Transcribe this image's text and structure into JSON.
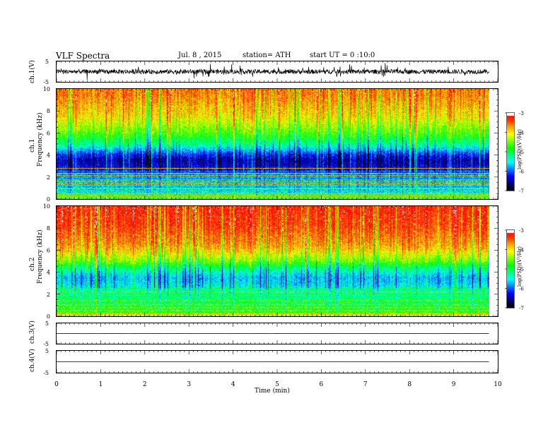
{
  "header": {
    "title": "VLF  Spectra",
    "date": "Jul.  8  , 2015",
    "station": "station= ATH",
    "start": "start  UT  =   0  :10:0"
  },
  "colors": {
    "colormap": [
      "#000000",
      "#00007f",
      "#0000ff",
      "#007fff",
      "#00ffff",
      "#00ff7f",
      "#00ff00",
      "#7fff00",
      "#ffff00",
      "#ffa500",
      "#ff3300",
      "#ff0000",
      "#ffffff"
    ],
    "trace": "#000000",
    "axis": "#000000"
  },
  "chart_data": [
    {
      "type": "line",
      "panel": "ch1-waveform",
      "ylabel": "ch.1(V)",
      "ylim": [
        -5,
        5
      ],
      "yticks": [
        "5",
        "-5"
      ],
      "x": [
        0,
        9.8
      ],
      "noise_amplitude_v": 1.1,
      "spike_amplitude_v": 3.5
    },
    {
      "type": "heatmap",
      "panel": "ch1-spectrogram",
      "ylabel_channel": "ch.1",
      "ylabel": "Frequency  (kHz)",
      "ylim": [
        0,
        10
      ],
      "yticks": [
        "0",
        "2",
        "4",
        "6",
        "8",
        "10"
      ],
      "colorbar": {
        "label": "log(PSD)(V²/Hz)",
        "range": [
          -7,
          -3
        ],
        "ticks": [
          "-3",
          "-4",
          "-5",
          "-6",
          "-7"
        ]
      },
      "freq_khz": [
        0,
        0.5,
        1,
        1.5,
        2,
        2.5,
        3,
        3.5,
        4,
        4.5,
        5,
        5.5,
        6,
        6.5,
        7,
        7.5,
        8,
        8.5,
        9,
        9.5,
        10
      ],
      "log_psd_profile": [
        -4.6,
        -5.6,
        -5.7,
        -5.8,
        -5.9,
        -6.2,
        -6.4,
        -6.5,
        -6.2,
        -5.7,
        -5.2,
        -4.9,
        -4.6,
        -4.4,
        -4.2,
        -4.0,
        -3.9,
        -3.8,
        -3.7,
        -3.6,
        -3.6
      ],
      "strong_lines_khz": [
        0.1,
        0.3,
        0.5,
        0.9,
        1.35,
        1.6,
        2.1,
        2.3,
        2.8
      ],
      "time_min_range": [
        0,
        9.8
      ]
    },
    {
      "type": "heatmap",
      "panel": "ch2-spectrogram",
      "ylabel_channel": "ch.2",
      "ylabel": "Frequency  (kHz)",
      "ylim": [
        0,
        10
      ],
      "yticks": [
        "0",
        "2",
        "4",
        "6",
        "8",
        "10"
      ],
      "colorbar": {
        "label": "log(PSD)(V²/Hz)",
        "range": [
          -7,
          -3
        ],
        "ticks": [
          "-3",
          "-4",
          "-5",
          "-6",
          "-7"
        ]
      },
      "freq_khz": [
        0,
        0.5,
        1,
        1.5,
        2,
        2.5,
        3,
        3.5,
        4,
        4.5,
        5,
        5.5,
        6,
        6.5,
        7,
        7.5,
        8,
        8.5,
        9,
        9.5,
        10
      ],
      "log_psd_profile": [
        -4.2,
        -5.0,
        -5.1,
        -5.2,
        -5.3,
        -5.4,
        -5.6,
        -5.7,
        -5.4,
        -5.0,
        -4.5,
        -4.2,
        -3.9,
        -3.7,
        -3.6,
        -3.5,
        -3.4,
        -3.3,
        -3.3,
        -3.2,
        -3.2
      ],
      "strong_lines_khz": [
        0.2,
        0.5,
        0.8,
        1.0,
        1.4,
        2.2
      ],
      "time_min_range": [
        0,
        9.8
      ]
    },
    {
      "type": "line",
      "panel": "ch3-waveform",
      "ylabel": "ch.3(V)",
      "ylim": [
        -5,
        5
      ],
      "yticks": [
        "5",
        "-5"
      ],
      "x": [
        0,
        9.8
      ],
      "level_v": 0.0,
      "noise_amplitude_v": 0.05
    },
    {
      "type": "line",
      "panel": "ch4-waveform",
      "ylabel": "ch.4(V)",
      "ylim": [
        -5,
        5
      ],
      "yticks": [
        "5",
        "-5"
      ],
      "x": [
        0,
        9.8
      ],
      "level_v": 0.0,
      "noise_amplitude_v": 0.0
    },
    {
      "type": "axis",
      "panel": "time-axis",
      "xlabel": "Time  (min)",
      "xlim": [
        0,
        10
      ],
      "xticks": [
        "0",
        "1",
        "2",
        "3",
        "4",
        "5",
        "6",
        "7",
        "8",
        "9",
        "10"
      ]
    }
  ]
}
